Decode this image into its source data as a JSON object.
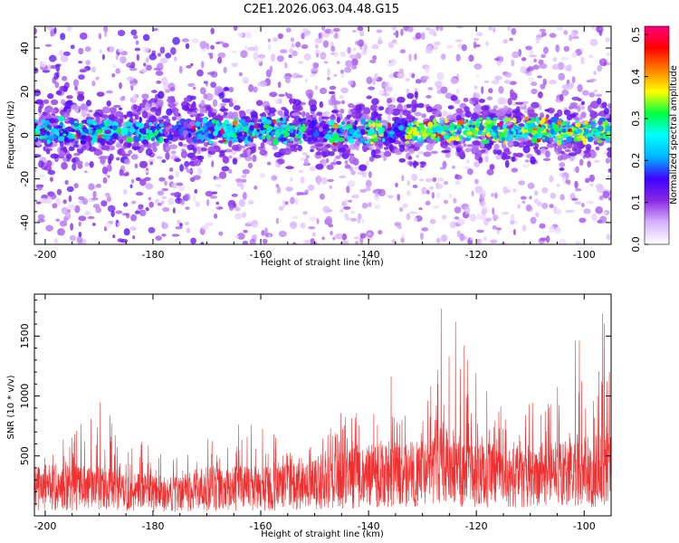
{
  "title": "C2E1.2026.063.04.48.G15",
  "chart_data": [
    {
      "type": "heatmap",
      "name": "spectrogram",
      "title": "C2E1.2026.063.04.48.G15",
      "xlabel": "Height of straight line (km)",
      "ylabel": "Frequency (Hz)",
      "xlim": [
        -202,
        -95
      ],
      "ylim": [
        -50,
        50
      ],
      "xticks": [
        -200,
        -180,
        -160,
        -140,
        -120,
        -100
      ],
      "xtick_labels": [
        "-200",
        "-180",
        "-160",
        "-140",
        "-120",
        "-100"
      ],
      "yticks": [
        -40,
        -20,
        0,
        20,
        40
      ],
      "ytick_labels": [
        "-40",
        "-20",
        "0",
        "20",
        "40"
      ],
      "signal_band_center_hz": 2,
      "colorbar": {
        "label": "Normalized spectral amplitude",
        "range": [
          0.0,
          0.52
        ],
        "ticks": [
          0.0,
          0.1,
          0.2,
          0.3,
          0.4,
          0.5
        ],
        "tick_labels": [
          "0.0",
          "0.1",
          "0.2",
          "0.3",
          "0.4",
          "0.5"
        ],
        "colors": [
          "#ffffff",
          "#d7b3ff",
          "#8a2be2",
          "#3f00ff",
          "#00b4ff",
          "#00ffff",
          "#00ff40",
          "#ffff00",
          "#ff8000",
          "#ff0000",
          "#ff007f"
        ]
      }
    },
    {
      "type": "line",
      "name": "snr",
      "xlabel": "Height of straight line (km)",
      "ylabel": "SNR (10 * v/v)",
      "xlim": [
        -202,
        -95
      ],
      "ylim": [
        0,
        1850
      ],
      "xticks": [
        -200,
        -180,
        -160,
        -140,
        -120,
        -100
      ],
      "xtick_labels": [
        "-200",
        "-180",
        "-160",
        "-140",
        "-120",
        "-100"
      ],
      "yticks": [
        500,
        1000,
        1500
      ],
      "ytick_labels": [
        "500",
        "1000",
        "1500"
      ],
      "color": "#f03030",
      "envelope": {
        "x": [
          -202,
          -198,
          -195,
          -192,
          -188,
          -184,
          -180,
          -176,
          -172,
          -168,
          -164,
          -160,
          -156,
          -152,
          -148,
          -144,
          -141,
          -139,
          -136,
          -133,
          -130,
          -128,
          -126.5,
          -125,
          -123,
          -121,
          -118,
          -116,
          -113,
          -110,
          -107,
          -104,
          -101,
          -99,
          -97.5,
          -95.5
        ],
        "peak": [
          520,
          720,
          880,
          1100,
          900,
          720,
          650,
          480,
          560,
          720,
          850,
          780,
          620,
          650,
          700,
          940,
          1260,
          1060,
          1180,
          1050,
          1280,
          1200,
          1830,
          1700,
          1600,
          1250,
          1150,
          1000,
          820,
          1000,
          1250,
          1100,
          1680,
          1280,
          1600,
          1830
        ],
        "median": [
          300,
          310,
          320,
          300,
          280,
          270,
          250,
          230,
          280,
          300,
          310,
          290,
          300,
          320,
          350,
          400,
          430,
          420,
          450,
          440,
          460,
          470,
          560,
          520,
          500,
          460,
          450,
          420,
          400,
          420,
          460,
          450,
          500,
          470,
          500,
          560
        ],
        "floor": [
          120,
          110,
          110,
          100,
          90,
          90,
          80,
          80,
          90,
          100,
          100,
          100,
          110,
          120,
          130,
          150,
          160,
          160,
          170,
          160,
          170,
          180,
          200,
          190,
          180,
          170,
          160,
          150,
          150,
          160,
          170,
          170,
          180,
          170,
          180,
          200
        ]
      }
    }
  ]
}
